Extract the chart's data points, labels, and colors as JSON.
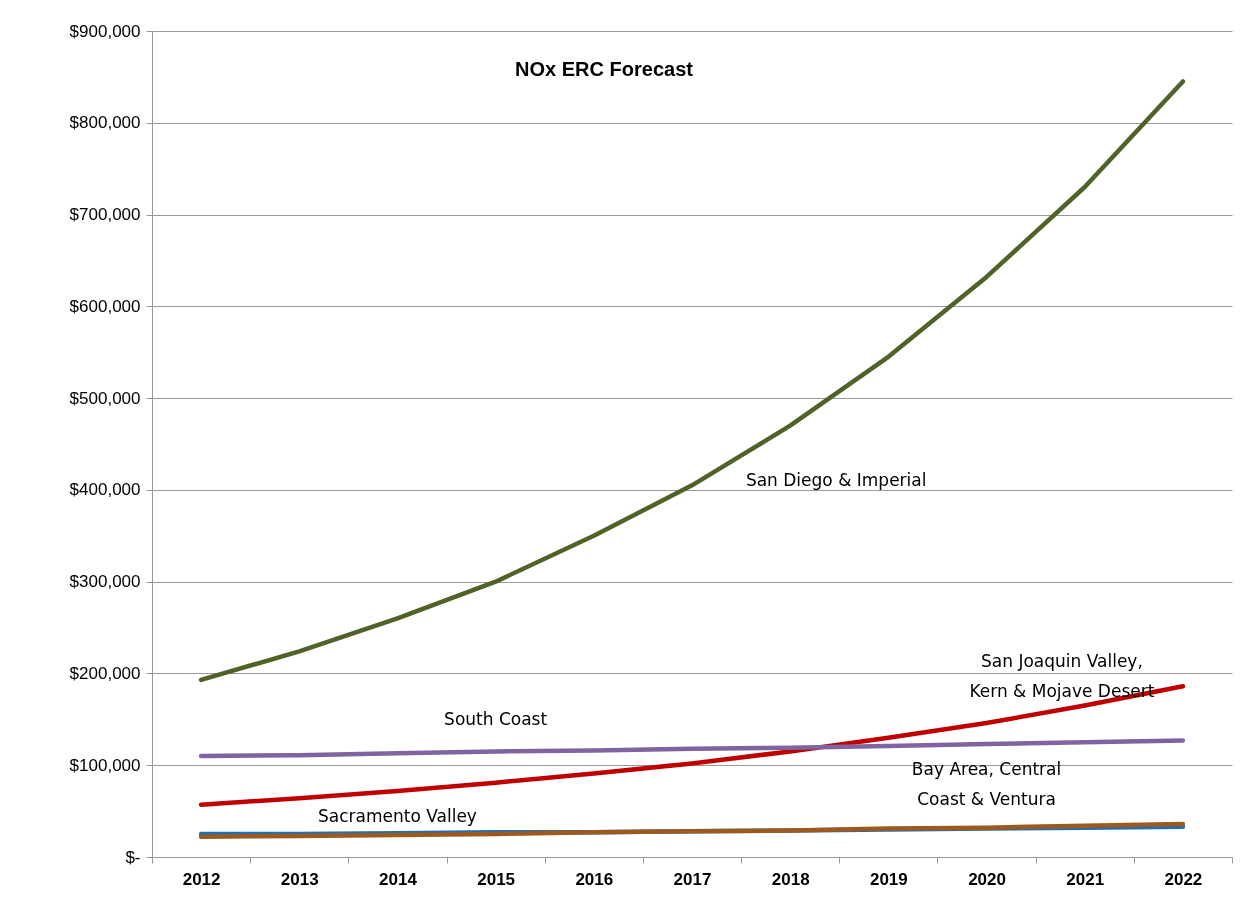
{
  "chart_data": {
    "type": "line",
    "title": "NOx ERC Forecast",
    "categories": [
      "2012",
      "2013",
      "2014",
      "2015",
      "2016",
      "2017",
      "2018",
      "2019",
      "2020",
      "2021",
      "2022"
    ],
    "series": [
      {
        "name": "San Diego & Imperial",
        "color": "#4f6228",
        "values": [
          193000,
          224000,
          260000,
          300000,
          350000,
          405000,
          470000,
          545000,
          632000,
          730000,
          845000
        ]
      },
      {
        "name": "San Joaquin Valley, Kern & Mojave Desert",
        "color": "#c00000",
        "values": [
          57000,
          64000,
          72000,
          81000,
          91000,
          102000,
          115000,
          130000,
          146000,
          165000,
          186000
        ]
      },
      {
        "name": "South Coast",
        "color": "#8064a2",
        "values": [
          110000,
          111000,
          113000,
          115000,
          116000,
          118000,
          119000,
          121000,
          123000,
          125000,
          127000
        ]
      },
      {
        "name": "Sacramento Valley",
        "color": "#1f6fb4",
        "values": [
          25000,
          25000,
          26000,
          27000,
          27000,
          28000,
          29000,
          30000,
          31000,
          32000,
          33000
        ]
      },
      {
        "name": "Bay Area, Central Coast & Ventura",
        "color": "#9c5a1f",
        "values": [
          22000,
          23000,
          24000,
          25000,
          27000,
          28000,
          29000,
          31000,
          32000,
          34000,
          36000
        ]
      }
    ],
    "ylim": [
      0,
      900000
    ],
    "yticks": [
      {
        "value": 0,
        "label": "$-"
      },
      {
        "value": 100000,
        "label": "$100,000"
      },
      {
        "value": 200000,
        "label": "$200,000"
      },
      {
        "value": 300000,
        "label": "$300,000"
      },
      {
        "value": 400000,
        "label": "$400,000"
      },
      {
        "value": 500000,
        "label": "$500,000"
      },
      {
        "value": 600000,
        "label": "$600,000"
      },
      {
        "value": 700000,
        "label": "$700,000"
      },
      {
        "value": 800000,
        "label": "$800,000"
      },
      {
        "value": 900000,
        "label": "$900,000"
      }
    ],
    "grid": "y",
    "legend": false,
    "marker": "none",
    "line_style": "solid"
  }
}
